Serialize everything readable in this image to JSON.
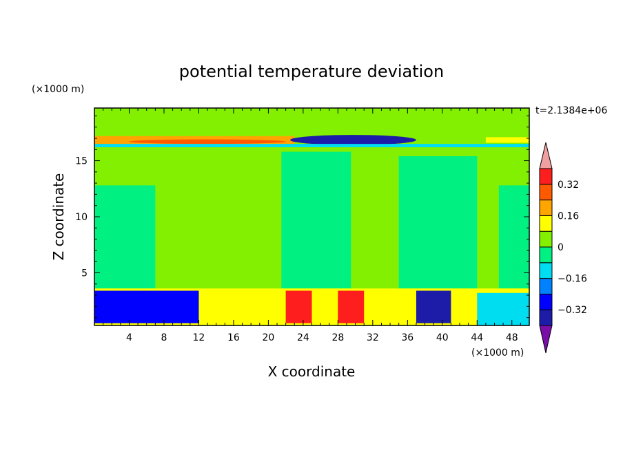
{
  "chart_data": {
    "type": "heatmap",
    "title": "potential temperature deviation",
    "xlabel": "X coordinate",
    "ylabel": "Z coordinate",
    "x_unit": "(×1000 m)",
    "y_unit": "(×1000 m)",
    "time_label": "t=2.1384e+06",
    "xlim": [
      0,
      50
    ],
    "ylim": [
      0.3,
      19.7
    ],
    "x_ticks": [
      4,
      8,
      12,
      16,
      20,
      24,
      28,
      32,
      36,
      40,
      44,
      48
    ],
    "y_ticks": [
      5,
      10,
      15
    ],
    "colorbar": {
      "levels": [
        -0.4,
        -0.32,
        -0.24,
        -0.16,
        -0.08,
        0,
        0.08,
        0.16,
        0.24,
        0.32,
        0.4
      ],
      "labels": [
        {
          "value": 0.32,
          "text": "0.32"
        },
        {
          "value": 0.16,
          "text": "0.16"
        },
        {
          "value": 0,
          "text": "0"
        },
        {
          "value": -0.16,
          "text": "−0.16"
        },
        {
          "value": -0.32,
          "text": "−0.32"
        }
      ],
      "colors": [
        "#7a0ea8",
        "#1c1ca8",
        "#0000ff",
        "#0082ff",
        "#00dcf0",
        "#00f082",
        "#82f000",
        "#ffff00",
        "#ffa500",
        "#ff5a00",
        "#ff1e1e",
        "#f0a0a0"
      ],
      "extend": "both"
    },
    "regions": [
      {
        "name": "lower-troposphere",
        "value": 0.03,
        "x": [
          0,
          50
        ],
        "z": [
          3.5,
          15.8
        ]
      },
      {
        "name": "negative-column-1",
        "value": -0.03,
        "x": [
          21.5,
          29.5
        ],
        "z": [
          3.6,
          15.8
        ]
      },
      {
        "name": "negative-column-2",
        "value": -0.03,
        "x": [
          35,
          44
        ],
        "z": [
          3.6,
          15.4
        ]
      },
      {
        "name": "negative-patch-left",
        "value": -0.03,
        "x": [
          0,
          7
        ],
        "z": [
          3.6,
          12.8
        ]
      },
      {
        "name": "negative-patch-right",
        "value": -0.03,
        "x": [
          46.5,
          50
        ],
        "z": [
          3.6,
          12.8
        ]
      },
      {
        "name": "upper-warm-band",
        "value": 0.2,
        "x": [
          0,
          23
        ],
        "z": [
          16.4,
          17.2
        ]
      },
      {
        "name": "upper-warm-core",
        "value": 0.3,
        "x": [
          4,
          22
        ],
        "z": [
          16.5,
          16.9
        ]
      },
      {
        "name": "upper-cold-lens",
        "value": -0.35,
        "x": [
          22.5,
          37
        ],
        "z": [
          16.4,
          17.3
        ]
      },
      {
        "name": "upper-warm-band-right",
        "value": 0.15,
        "x": [
          45,
          50
        ],
        "z": [
          16.6,
          17.1
        ]
      },
      {
        "name": "inversion-cold-strip",
        "value": -0.1,
        "x": [
          0,
          50
        ],
        "z": [
          16.2,
          16.5
        ]
      },
      {
        "name": "boundary-layer",
        "value": 0.1,
        "x": [
          0,
          50
        ],
        "z": [
          0.3,
          3.6
        ]
      },
      {
        "name": "bl-cold-left",
        "value": -0.25,
        "x": [
          0,
          12
        ],
        "z": [
          0.5,
          3.4
        ]
      },
      {
        "name": "bl-warm-column-1",
        "value": 0.32,
        "x": [
          22,
          25
        ],
        "z": [
          0.5,
          3.4
        ]
      },
      {
        "name": "bl-warm-column-2",
        "value": 0.32,
        "x": [
          28,
          31
        ],
        "z": [
          0.5,
          3.4
        ]
      },
      {
        "name": "bl-cold-plume",
        "value": -0.38,
        "x": [
          37,
          41
        ],
        "z": [
          0.5,
          3.4
        ]
      },
      {
        "name": "bl-cold-right",
        "value": -0.1,
        "x": [
          44,
          50
        ],
        "z": [
          0.3,
          3.2
        ]
      }
    ]
  }
}
